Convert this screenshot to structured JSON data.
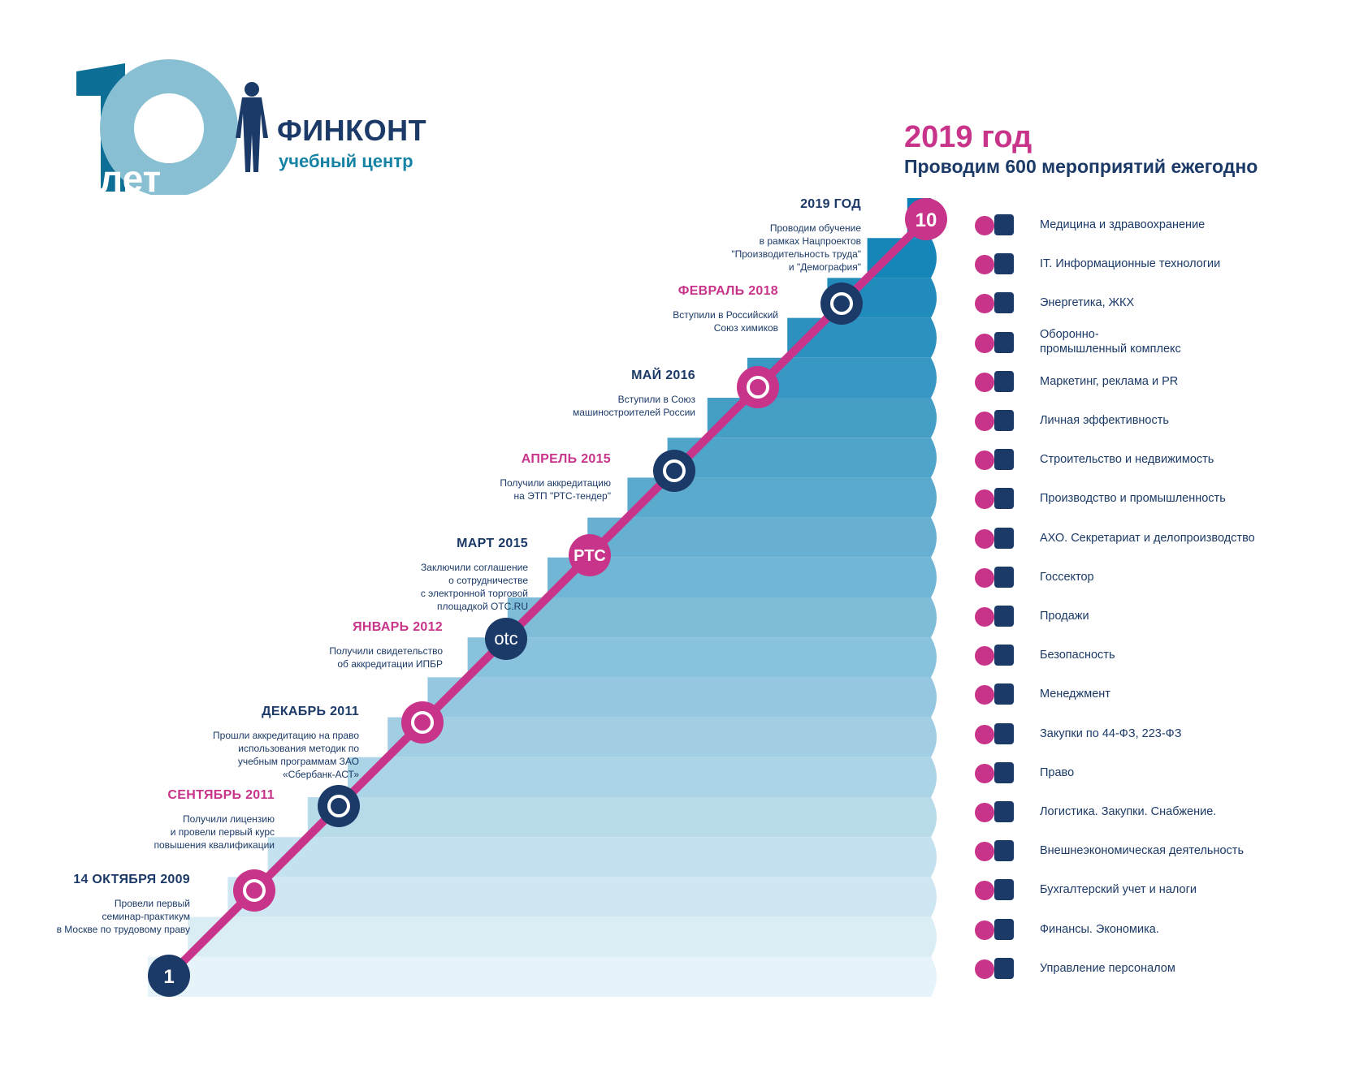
{
  "logo": {
    "number": "10",
    "years_word": "лет"
  },
  "brand": {
    "name": "ФИНКОНТ",
    "subtitle": "учебный центр"
  },
  "header": {
    "year": "2019 год",
    "tagline": "Проводим 600 мероприятий ежегодно"
  },
  "steps": {
    "start": "1",
    "end": "10"
  },
  "milestones": [
    {
      "date": "14 ОКТЯБРЯ 2009",
      "date_color": "navy",
      "desc": "Провели первый\nсеминар-практикум\nв Москве по трудовому праву",
      "icon": "certificate-seal-icon",
      "icon_text": ""
    },
    {
      "date": "СЕНТЯБРЬ 2011",
      "date_color": "pink",
      "desc": "Получили лицензию\nи провели первый курс\nповышения квалификации",
      "icon": "sberbank-logo-icon",
      "icon_text": ""
    },
    {
      "date": "ДЕКАБРЬ 2011",
      "date_color": "navy",
      "desc": "Прошли аккредитацию на право\nиспользования методик по\nучебным программам ЗАО\n«Сбербанк-АСТ»",
      "icon": "ipbr-logo-icon",
      "icon_text": ""
    },
    {
      "date": "ЯНВАРЬ 2012",
      "date_color": "pink",
      "desc": "Получили свидетельство\nоб аккредитации ИПБР",
      "icon": "otc-logo-icon",
      "icon_text": "otc"
    },
    {
      "date": "МАРТ 2015",
      "date_color": "navy",
      "desc": "Заключили соглашение\nо сотрудничестве\nс электронной торговой\nплощадкой OTC.RU",
      "icon": "rts-logo-icon",
      "icon_text": "РТС"
    },
    {
      "date": "АПРЕЛЬ 2015",
      "date_color": "pink",
      "desc": "Получили  аккредитацию\nна ЭТП \"РТС-тендер\"",
      "icon": "gear-icon",
      "icon_text": ""
    },
    {
      "date": "МАЙ 2016",
      "date_color": "navy",
      "desc": "Вступили в Союз\nмашиностроителей России",
      "icon": "flask-icon",
      "icon_text": ""
    },
    {
      "date": "ФЕВРАЛЬ 2018",
      "date_color": "pink",
      "desc": "Вступили в Российский\nСоюз химиков",
      "icon": "leaf-logo-icon",
      "icon_text": ""
    },
    {
      "date": "2019 ГОД",
      "date_color": "navy",
      "desc": "Проводим обучение\nв рамках Нацпроектов\n\"Производительность труда\"\nи \"Демография\"",
      "icon": "",
      "icon_text": ""
    }
  ],
  "industries": [
    {
      "label": "Медицина и здравоохранение",
      "icon": "medical-kit-icon"
    },
    {
      "label": "IT. Информационные технологии",
      "icon": "laptop-icon"
    },
    {
      "label": "Энергетика, ЖКХ",
      "icon": "bulb-wrench-icon"
    },
    {
      "label": "Оборонно-\nпромышленный комплекс",
      "icon": "rocket-icon"
    },
    {
      "label": "Маркетинг, реклама и PR",
      "icon": "megaphone-icon"
    },
    {
      "label": "Личная эффективность",
      "icon": "superhero-icon"
    },
    {
      "label": "Строительство и недвижимость",
      "icon": "helmet-building-icon"
    },
    {
      "label": "Производство и промышленность",
      "icon": "factory-icon"
    },
    {
      "label": "АХО. Секретариат и делопроизводство",
      "icon": "stamp-document-icon"
    },
    {
      "label": "Госсектор",
      "icon": "coat-of-arms-icon"
    },
    {
      "label": "Продажи",
      "icon": "growth-chart-icon"
    },
    {
      "label": "Безопасность",
      "icon": "shield-person-icon"
    },
    {
      "label": "Менеджмент",
      "icon": "org-chart-icon"
    },
    {
      "label": "Закупки по 44-ФЗ, 223-ФЗ",
      "icon": "emblem-lock-icon"
    },
    {
      "label": "Право",
      "icon": "scales-icon"
    },
    {
      "label": "Логистика. Закупки. Снабжение.",
      "icon": "route-pin-icon"
    },
    {
      "label": "Внешнеэкономическая деятельность",
      "icon": "globe-pie-icon"
    },
    {
      "label": "Бухгалтерский учет и налоги",
      "icon": "calculator-icon"
    },
    {
      "label": "Финансы. Экономика.",
      "icon": "ruble-chart-icon"
    },
    {
      "label": "Управление персоналом",
      "icon": "people-group-icon"
    }
  ],
  "colors": {
    "navy": "#1b3a67",
    "pink": "#c8348a",
    "blue_dark": "#0a7fb4",
    "blue_light": "#e6f3f9"
  }
}
